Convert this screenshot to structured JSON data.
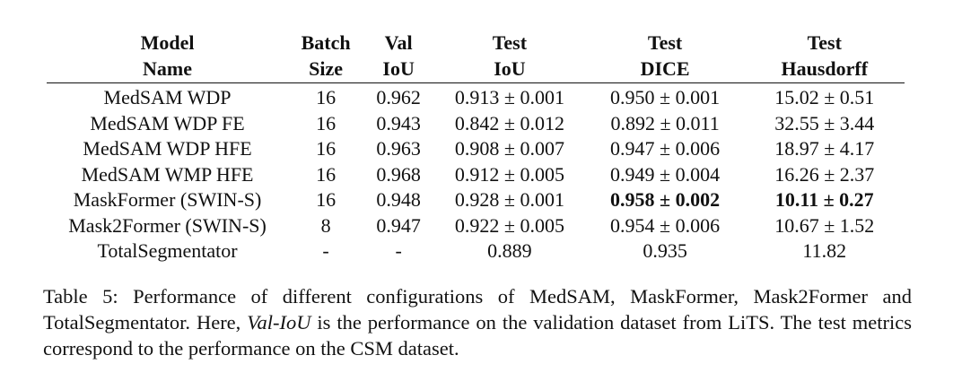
{
  "table": {
    "headers": [
      {
        "line1": "Model",
        "line2": "Name"
      },
      {
        "line1": "Batch",
        "line2": "Size"
      },
      {
        "line1": "Val",
        "line2": "IoU"
      },
      {
        "line1": "Test",
        "line2": "IoU"
      },
      {
        "line1": "Test",
        "line2": "DICE"
      },
      {
        "line1": "Test",
        "line2": "Hausdorff"
      }
    ],
    "rows": [
      {
        "model": "MedSAM WDP",
        "batch": "16",
        "val_iou": "0.962",
        "test_iou": "0.913 ± 0.001",
        "dice": "0.950 ± 0.001",
        "hausdorff": "15.02 ± 0.51"
      },
      {
        "model": "MedSAM WDP FE",
        "batch": "16",
        "val_iou": "0.943",
        "test_iou": "0.842 ± 0.012",
        "dice": "0.892 ± 0.011",
        "hausdorff": "32.55 ± 3.44"
      },
      {
        "model": "MedSAM WDP HFE",
        "batch": "16",
        "val_iou": "0.963",
        "test_iou": "0.908 ± 0.007",
        "dice": "0.947 ± 0.006",
        "hausdorff": "18.97 ± 4.17"
      },
      {
        "model": "MedSAM WMP HFE",
        "batch": "16",
        "val_iou": "0.968",
        "test_iou": "0.912 ± 0.005",
        "dice": "0.949 ± 0.004",
        "hausdorff": "16.26 ± 2.37"
      },
      {
        "model": "MaskFormer (SWIN-S)",
        "batch": "16",
        "val_iou": "0.948",
        "test_iou": "0.928 ± 0.001",
        "dice": "0.958 ± 0.002",
        "hausdorff": "10.11 ± 0.27"
      },
      {
        "model": "Mask2Former (SWIN-S)",
        "batch": "8",
        "val_iou": "0.947",
        "test_iou": "0.922 ± 0.005",
        "dice": "0.954 ± 0.006",
        "hausdorff": "10.67 ± 1.52"
      },
      {
        "model": "TotalSegmentator",
        "batch": "-",
        "val_iou": "-",
        "test_iou": "0.889",
        "dice": "0.935",
        "hausdorff": "11.82"
      }
    ]
  },
  "caption": {
    "label": "Table 5:",
    "text_before": "Performance of different configurations of MedSAM, MaskFormer, Mask2Former and TotalSegmentator. Here,",
    "emphasis": "Val-IoU",
    "text_after": "is the performance on the validation dataset from LiTS. The test metrics correspond to the performance on the CSM dataset."
  }
}
